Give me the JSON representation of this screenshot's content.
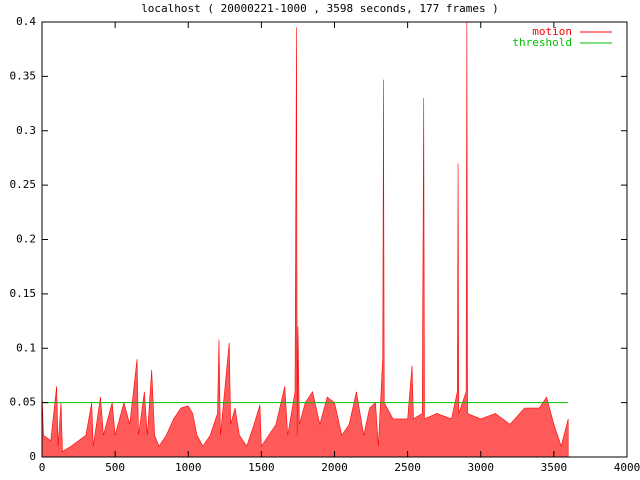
{
  "chart_data": {
    "type": "area",
    "title": "localhost ( 20000221-1000 , 3598 seconds, 177 frames )",
    "xlim": [
      0,
      4000
    ],
    "xticks": [
      0,
      500,
      1000,
      1500,
      2000,
      2500,
      3000,
      3500,
      4000
    ],
    "ylim": [
      0,
      0.4
    ],
    "yticks": [
      0,
      0.05,
      0.1,
      0.15,
      0.2,
      0.25,
      0.3,
      0.35,
      0.4
    ],
    "legend": "top-right",
    "series": [
      {
        "name": "motion",
        "color": "#ff0000",
        "fill": "#ff5a5a",
        "x": [
          0,
          10,
          60,
          100,
          110,
          130,
          140,
          200,
          300,
          340,
          350,
          400,
          420,
          480,
          500,
          560,
          600,
          650,
          660,
          700,
          720,
          750,
          770,
          800,
          850,
          900,
          950,
          1000,
          1030,
          1060,
          1100,
          1150,
          1200,
          1210,
          1220,
          1280,
          1290,
          1320,
          1350,
          1400,
          1450,
          1490,
          1500,
          1550,
          1600,
          1660,
          1680,
          1730,
          1740,
          1745,
          1750,
          1760,
          1800,
          1850,
          1900,
          1950,
          2000,
          2050,
          2100,
          2150,
          2200,
          2240,
          2280,
          2300,
          2330,
          2335,
          2340,
          2400,
          2450,
          2500,
          2530,
          2540,
          2600,
          2610,
          2615,
          2700,
          2800,
          2840,
          2845,
          2850,
          2900,
          2905,
          2910,
          3000,
          3100,
          3200,
          3300,
          3400,
          3450,
          3500,
          3550,
          3598
        ],
        "values": [
          0.06,
          0.02,
          0.015,
          0.065,
          0.01,
          0.05,
          0.005,
          0.01,
          0.02,
          0.05,
          0.01,
          0.055,
          0.02,
          0.05,
          0.02,
          0.05,
          0.03,
          0.09,
          0.02,
          0.06,
          0.02,
          0.08,
          0.02,
          0.01,
          0.02,
          0.035,
          0.045,
          0.047,
          0.04,
          0.02,
          0.01,
          0.02,
          0.04,
          0.108,
          0.02,
          0.105,
          0.03,
          0.045,
          0.02,
          0.01,
          0.03,
          0.048,
          0.01,
          0.02,
          0.03,
          0.065,
          0.02,
          0.06,
          0.395,
          0.02,
          0.12,
          0.03,
          0.05,
          0.06,
          0.03,
          0.055,
          0.05,
          0.02,
          0.03,
          0.06,
          0.02,
          0.045,
          0.05,
          0.01,
          0.092,
          0.347,
          0.05,
          0.035,
          0.035,
          0.035,
          0.084,
          0.035,
          0.04,
          0.33,
          0.035,
          0.04,
          0.035,
          0.06,
          0.27,
          0.04,
          0.06,
          0.4,
          0.04,
          0.035,
          0.04,
          0.03,
          0.045,
          0.045,
          0.055,
          0.03,
          0.01,
          0.035
        ]
      },
      {
        "name": "threshold",
        "color": "#00c000",
        "x": [
          0,
          3598
        ],
        "values": [
          0.05,
          0.05
        ]
      }
    ]
  }
}
